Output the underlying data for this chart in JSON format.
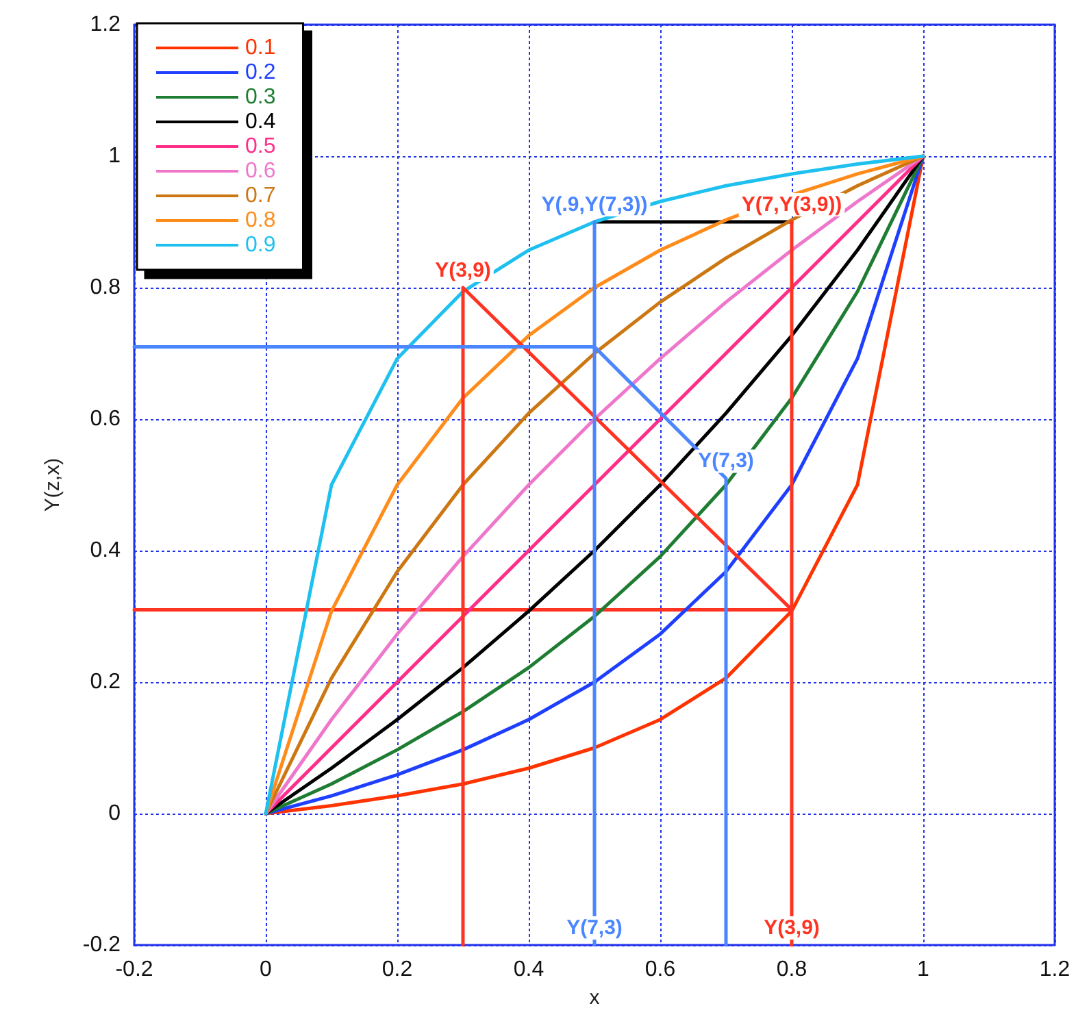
{
  "chart_data": {
    "type": "line",
    "xlabel": "x",
    "ylabel": "Y(z,x)",
    "x": [
      0,
      0.1,
      0.2,
      0.3,
      0.4,
      0.5,
      0.6,
      0.7,
      0.8,
      0.9,
      1
    ],
    "xlim": [
      -0.2,
      1.2
    ],
    "xticks": [
      -0.2,
      0,
      0.2,
      0.4,
      0.6,
      0.8,
      1,
      1.2
    ],
    "ylim": [
      -0.2,
      1.2
    ],
    "yticks": [
      -0.2,
      0,
      0.2,
      0.4,
      0.6,
      0.8,
      1,
      1.2
    ],
    "grid": true,
    "legend": "top left",
    "marker": "none",
    "line_style": "solid",
    "series": [
      {
        "name": "0.1",
        "color": "#ff3300",
        "values": [
          0,
          0.012,
          0.027,
          0.045,
          0.069,
          0.1,
          0.143,
          0.206,
          0.308,
          0.5,
          1
        ]
      },
      {
        "name": "0.2",
        "color": "#1f3fff",
        "values": [
          0,
          0.027,
          0.059,
          0.097,
          0.143,
          0.2,
          0.273,
          0.368,
          0.5,
          0.692,
          1
        ]
      },
      {
        "name": "0.3",
        "color": "#1e7d32",
        "values": [
          0,
          0.045,
          0.097,
          0.155,
          0.222,
          0.3,
          0.391,
          0.5,
          0.632,
          0.794,
          1
        ]
      },
      {
        "name": "0.4",
        "color": "#000000",
        "values": [
          0,
          0.069,
          0.143,
          0.222,
          0.308,
          0.4,
          0.5,
          0.609,
          0.727,
          0.857,
          1
        ]
      },
      {
        "name": "0.5",
        "color": "#ff2d8a",
        "values": [
          0,
          0.1,
          0.2,
          0.3,
          0.4,
          0.5,
          0.6,
          0.7,
          0.8,
          0.9,
          1
        ]
      },
      {
        "name": "0.6",
        "color": "#ee77cc",
        "values": [
          0,
          0.143,
          0.273,
          0.391,
          0.5,
          0.6,
          0.692,
          0.778,
          0.857,
          0.931,
          1
        ]
      },
      {
        "name": "0.7",
        "color": "#cc7711",
        "values": [
          0,
          0.206,
          0.368,
          0.5,
          0.609,
          0.7,
          0.778,
          0.845,
          0.903,
          0.955,
          1
        ]
      },
      {
        "name": "0.8",
        "color": "#ff8c1a",
        "values": [
          0,
          0.308,
          0.5,
          0.632,
          0.727,
          0.8,
          0.857,
          0.903,
          0.941,
          0.973,
          1
        ]
      },
      {
        "name": "0.9",
        "color": "#1ec0f0",
        "values": [
          0,
          0.5,
          0.692,
          0.794,
          0.857,
          0.9,
          0.931,
          0.955,
          0.973,
          0.988,
          1
        ]
      },
      {
        "color": "#ff3322",
        "x": [
          0.3,
          0.3,
          0.8
        ],
        "values": [
          -0.2,
          0.8,
          0.31
        ],
        "value_labels": [
          null,
          "Y(3,9)",
          null
        ]
      },
      {
        "color": "#ff3322",
        "x": [
          -0.2,
          0.8
        ],
        "values": [
          0.31,
          0.31
        ]
      },
      {
        "color": "#ff3322",
        "x": [
          0.8,
          0.8
        ],
        "values": [
          -0.2,
          0.9
        ],
        "value_labels": [
          "Y(3,9)",
          "Y(7,Y(3,9))"
        ]
      },
      {
        "color": "#000000",
        "x": [
          0.5,
          0.8
        ],
        "values": [
          0.9,
          0.9
        ]
      },
      {
        "color": "#4a86ff",
        "x": [
          -0.2,
          0.5,
          0.7,
          0.7
        ],
        "values": [
          0.71,
          0.71,
          0.51,
          -0.2
        ],
        "value_labels": [
          null,
          null,
          "Y(7,3)",
          null
        ]
      },
      {
        "color": "#4a86ff",
        "x": [
          0.5,
          0.5
        ],
        "values": [
          -0.2,
          0.9
        ],
        "value_labels": [
          "Y(7,3)",
          "Y(.9,Y(7,3))"
        ]
      }
    ]
  }
}
